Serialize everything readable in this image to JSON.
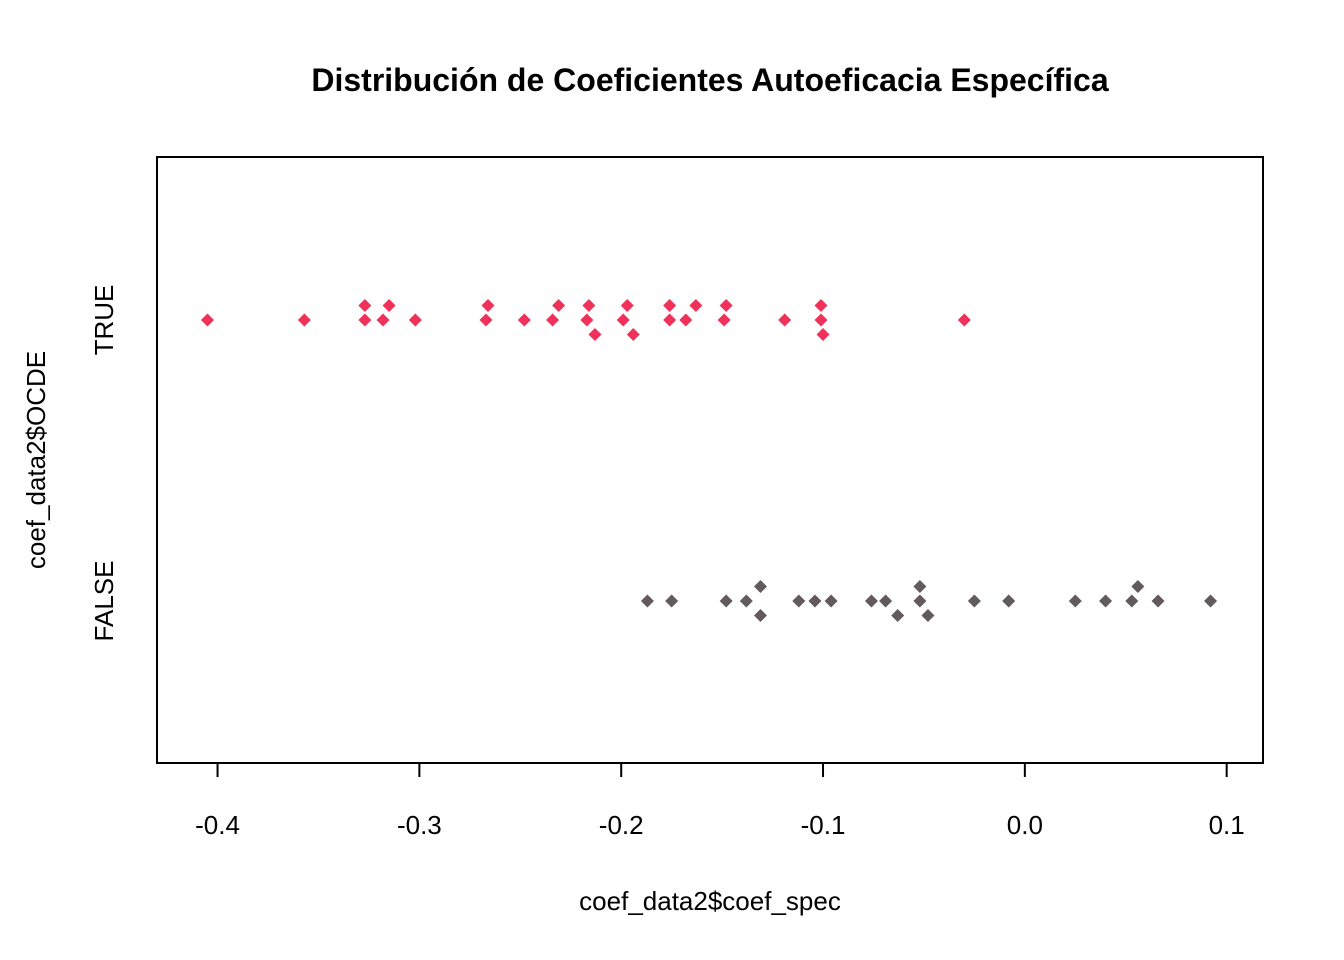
{
  "chart_data": {
    "type": "scatter",
    "title": "Distribución de Coeficientes Autoeficacia Específica",
    "xlabel": "coef_data2$coef_spec",
    "ylabel": "coef_data2$OCDE",
    "xlim": [
      -0.43,
      0.118
    ],
    "x_ticks": [
      "-0.4",
      "-0.3",
      "-0.2",
      "-0.1",
      "0.0",
      "0.1"
    ],
    "x_tick_values": [
      -0.4,
      -0.3,
      -0.2,
      -0.1,
      0.0,
      0.1
    ],
    "categories": [
      "FALSE",
      "TRUE"
    ],
    "grid": false,
    "series": [
      {
        "category": "TRUE",
        "color": "#f0325a",
        "marker": "diamond",
        "points": [
          [
            -0.405,
            0
          ],
          [
            -0.357,
            0
          ],
          [
            -0.327,
            0
          ],
          [
            -0.327,
            1
          ],
          [
            -0.318,
            0
          ],
          [
            -0.315,
            1
          ],
          [
            -0.302,
            0
          ],
          [
            -0.267,
            0
          ],
          [
            -0.266,
            1
          ],
          [
            -0.248,
            0
          ],
          [
            -0.234,
            0
          ],
          [
            -0.231,
            1
          ],
          [
            -0.217,
            0
          ],
          [
            -0.216,
            1
          ],
          [
            -0.213,
            -1
          ],
          [
            -0.199,
            0
          ],
          [
            -0.197,
            1
          ],
          [
            -0.194,
            -1
          ],
          [
            -0.176,
            0
          ],
          [
            -0.176,
            1
          ],
          [
            -0.168,
            0
          ],
          [
            -0.163,
            1
          ],
          [
            -0.149,
            0
          ],
          [
            -0.148,
            1
          ],
          [
            -0.119,
            0
          ],
          [
            -0.101,
            1
          ],
          [
            -0.101,
            0
          ],
          [
            -0.1,
            -1
          ],
          [
            -0.03,
            0
          ]
        ]
      },
      {
        "category": "FALSE",
        "color": "#615a5e",
        "marker": "diamond",
        "points": [
          [
            -0.187,
            0
          ],
          [
            -0.175,
            0
          ],
          [
            -0.148,
            0
          ],
          [
            -0.138,
            0
          ],
          [
            -0.131,
            1
          ],
          [
            -0.131,
            -1
          ],
          [
            -0.112,
            0
          ],
          [
            -0.104,
            0
          ],
          [
            -0.096,
            0
          ],
          [
            -0.076,
            0
          ],
          [
            -0.069,
            0
          ],
          [
            -0.063,
            -1
          ],
          [
            -0.052,
            1
          ],
          [
            -0.052,
            0
          ],
          [
            -0.048,
            -1
          ],
          [
            -0.025,
            0
          ],
          [
            -0.008,
            0
          ],
          [
            0.025,
            0
          ],
          [
            0.04,
            0
          ],
          [
            0.053,
            0
          ],
          [
            0.056,
            1
          ],
          [
            0.066,
            0
          ],
          [
            0.092,
            0
          ]
        ]
      }
    ]
  }
}
